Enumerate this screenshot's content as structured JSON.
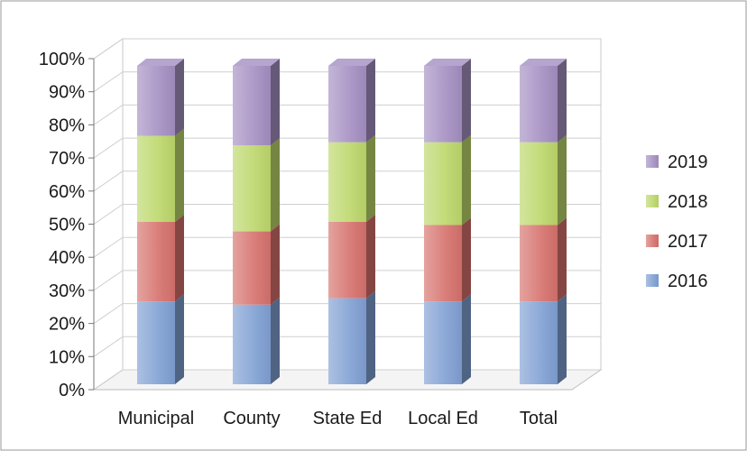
{
  "chart_data": {
    "type": "bar",
    "stacked": true,
    "percent_stacked": true,
    "style_3d": true,
    "categories": [
      "Municipal",
      "County",
      "State Ed",
      "Local Ed",
      "Total"
    ],
    "series": [
      {
        "name": "2016",
        "values": [
          26,
          25,
          27,
          26,
          26
        ]
      },
      {
        "name": "2017",
        "values": [
          25,
          23,
          24,
          24,
          24
        ]
      },
      {
        "name": "2018",
        "values": [
          27,
          27,
          25,
          26,
          26
        ]
      },
      {
        "name": "2019",
        "values": [
          22,
          25,
          24,
          24,
          24
        ]
      }
    ],
    "y_tick_labels": [
      "0%",
      "10%",
      "20%",
      "30%",
      "40%",
      "50%",
      "60%",
      "70%",
      "80%",
      "90%",
      "100%"
    ],
    "ylim": [
      0,
      100
    ],
    "grid": true,
    "legend_position": "right",
    "legend_order": [
      "2019",
      "2018",
      "2017",
      "2016"
    ],
    "colors": {
      "2016": "#7f9fd3",
      "2017": "#d6716c",
      "2018": "#bcd76a",
      "2019": "#a48fc2"
    }
  }
}
